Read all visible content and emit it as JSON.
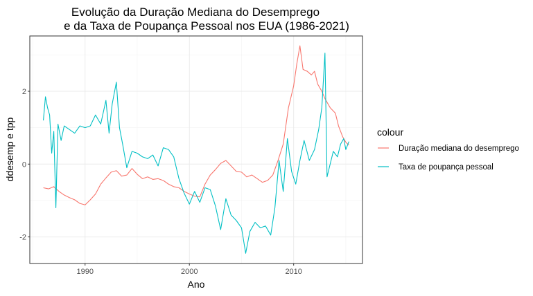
{
  "chart_data": {
    "type": "line",
    "title_lines": [
      "Evolução da Duração Mediana do Desemprego",
      "e da Taxa de Poupança Pessoal nos EUA (1986-2021)"
    ],
    "xlabel": "Ano",
    "ylabel": "ddesemp e tpp",
    "x_ticks": [
      1990,
      2000,
      2010
    ],
    "y_ticks": [
      -2,
      0,
      2
    ],
    "xlim": [
      1984.7,
      2016.6
    ],
    "ylim": [
      -2.73,
      3.52
    ],
    "grid": true,
    "legend": {
      "title": "colour",
      "position": "right"
    },
    "series": [
      {
        "name": "Duração mediana do desemprego",
        "color": "#F8766D",
        "points": [
          [
            1986.0,
            -0.65
          ],
          [
            1986.5,
            -0.68
          ],
          [
            1987.0,
            -0.62
          ],
          [
            1987.5,
            -0.75
          ],
          [
            1988.0,
            -0.85
          ],
          [
            1988.5,
            -0.92
          ],
          [
            1989.0,
            -0.98
          ],
          [
            1989.5,
            -1.08
          ],
          [
            1990.0,
            -1.12
          ],
          [
            1990.5,
            -0.98
          ],
          [
            1991.0,
            -0.82
          ],
          [
            1991.5,
            -0.55
          ],
          [
            1992.0,
            -0.38
          ],
          [
            1992.5,
            -0.22
          ],
          [
            1993.0,
            -0.18
          ],
          [
            1993.5,
            -0.33
          ],
          [
            1994.0,
            -0.3
          ],
          [
            1994.5,
            -0.12
          ],
          [
            1995.0,
            -0.28
          ],
          [
            1995.5,
            -0.4
          ],
          [
            1996.0,
            -0.35
          ],
          [
            1996.5,
            -0.42
          ],
          [
            1997.0,
            -0.4
          ],
          [
            1997.5,
            -0.45
          ],
          [
            1998.0,
            -0.55
          ],
          [
            1998.5,
            -0.62
          ],
          [
            1999.0,
            -0.65
          ],
          [
            1999.5,
            -0.75
          ],
          [
            2000.0,
            -0.82
          ],
          [
            2000.5,
            -0.88
          ],
          [
            2001.0,
            -0.9
          ],
          [
            2001.5,
            -0.55
          ],
          [
            2002.0,
            -0.3
          ],
          [
            2002.5,
            -0.15
          ],
          [
            2003.0,
            0.02
          ],
          [
            2003.5,
            0.1
          ],
          [
            2004.0,
            -0.05
          ],
          [
            2004.5,
            -0.2
          ],
          [
            2005.0,
            -0.22
          ],
          [
            2005.5,
            -0.35
          ],
          [
            2006.0,
            -0.3
          ],
          [
            2006.5,
            -0.4
          ],
          [
            2007.0,
            -0.5
          ],
          [
            2007.5,
            -0.45
          ],
          [
            2008.0,
            -0.3
          ],
          [
            2008.5,
            0.1
          ],
          [
            2009.0,
            0.55
          ],
          [
            2009.5,
            1.55
          ],
          [
            2010.0,
            2.15
          ],
          [
            2010.3,
            2.75
          ],
          [
            2010.6,
            3.25
          ],
          [
            2010.9,
            2.6
          ],
          [
            2011.3,
            2.55
          ],
          [
            2011.7,
            2.45
          ],
          [
            2012.0,
            2.55
          ],
          [
            2012.3,
            2.2
          ],
          [
            2012.7,
            2.0
          ],
          [
            2013.0,
            1.8
          ],
          [
            2013.5,
            1.55
          ],
          [
            2014.0,
            1.4
          ],
          [
            2014.3,
            1.05
          ],
          [
            2014.7,
            0.75
          ],
          [
            2015.0,
            0.6
          ],
          [
            2015.3,
            0.52
          ]
        ]
      },
      {
        "name": "Taxa de poupança pessoal",
        "color": "#00BFC4",
        "points": [
          [
            1986.0,
            1.2
          ],
          [
            1986.2,
            1.85
          ],
          [
            1986.4,
            1.55
          ],
          [
            1986.6,
            1.35
          ],
          [
            1986.8,
            0.3
          ],
          [
            1987.0,
            0.9
          ],
          [
            1987.2,
            -1.2
          ],
          [
            1987.4,
            1.1
          ],
          [
            1987.7,
            0.65
          ],
          [
            1988.0,
            1.05
          ],
          [
            1988.5,
            0.95
          ],
          [
            1989.0,
            0.85
          ],
          [
            1989.5,
            1.05
          ],
          [
            1990.0,
            1.0
          ],
          [
            1990.5,
            1.05
          ],
          [
            1991.0,
            1.35
          ],
          [
            1991.5,
            1.1
          ],
          [
            1992.0,
            1.75
          ],
          [
            1992.3,
            0.85
          ],
          [
            1992.6,
            1.65
          ],
          [
            1993.0,
            2.25
          ],
          [
            1993.3,
            1.0
          ],
          [
            1993.6,
            0.55
          ],
          [
            1994.0,
            -0.1
          ],
          [
            1994.5,
            0.35
          ],
          [
            1995.0,
            0.3
          ],
          [
            1995.5,
            0.2
          ],
          [
            1996.0,
            0.15
          ],
          [
            1996.5,
            0.25
          ],
          [
            1997.0,
            -0.05
          ],
          [
            1997.5,
            0.45
          ],
          [
            1998.0,
            0.4
          ],
          [
            1998.5,
            0.2
          ],
          [
            1999.0,
            -0.4
          ],
          [
            1999.5,
            -0.8
          ],
          [
            2000.0,
            -1.1
          ],
          [
            2000.5,
            -0.75
          ],
          [
            2001.0,
            -1.05
          ],
          [
            2001.5,
            -0.65
          ],
          [
            2002.0,
            -0.7
          ],
          [
            2002.5,
            -1.15
          ],
          [
            2003.0,
            -1.8
          ],
          [
            2003.5,
            -0.95
          ],
          [
            2004.0,
            -1.4
          ],
          [
            2004.5,
            -1.55
          ],
          [
            2005.0,
            -1.75
          ],
          [
            2005.4,
            -2.45
          ],
          [
            2005.8,
            -1.85
          ],
          [
            2006.3,
            -1.6
          ],
          [
            2006.8,
            -1.75
          ],
          [
            2007.3,
            -1.7
          ],
          [
            2007.8,
            -1.95
          ],
          [
            2008.2,
            -1.2
          ],
          [
            2008.6,
            0.1
          ],
          [
            2009.0,
            -0.75
          ],
          [
            2009.4,
            0.7
          ],
          [
            2009.8,
            -0.2
          ],
          [
            2010.2,
            -0.55
          ],
          [
            2010.6,
            0.1
          ],
          [
            2011.0,
            0.65
          ],
          [
            2011.5,
            0.1
          ],
          [
            2012.0,
            0.4
          ],
          [
            2012.4,
            0.95
          ],
          [
            2012.7,
            1.55
          ],
          [
            2013.0,
            3.05
          ],
          [
            2013.2,
            -0.35
          ],
          [
            2013.5,
            0.0
          ],
          [
            2013.8,
            0.35
          ],
          [
            2014.2,
            0.2
          ],
          [
            2014.5,
            0.55
          ],
          [
            2014.8,
            0.7
          ],
          [
            2015.0,
            0.4
          ],
          [
            2015.3,
            0.62
          ]
        ]
      }
    ]
  }
}
